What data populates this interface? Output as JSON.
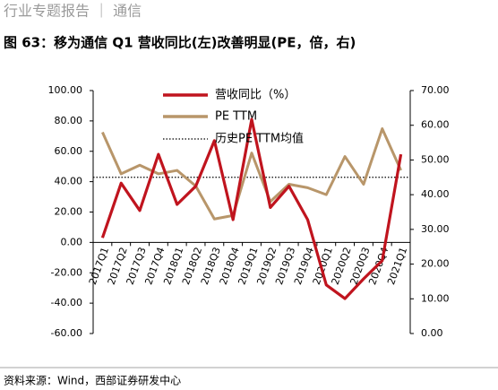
{
  "header": "行业专题报告 ｜ 通信",
  "source": "资料来源：Wind，西部证券研发中心",
  "chart_data": {
    "type": "line",
    "title": "图 63：移为通信 Q1 营收同比(左)改善明显(PE，倍，右)",
    "categories": [
      "2017Q1",
      "2017Q2",
      "2017Q3",
      "2017Q4",
      "2018Q1",
      "2018Q2",
      "2018Q3",
      "2018Q4",
      "2019Q1",
      "2019Q2",
      "2019Q3",
      "2019Q4",
      "2020Q1",
      "2020Q2",
      "2020Q3",
      "2020Q4",
      "2021Q1"
    ],
    "series": [
      {
        "name": "营收同比（%）",
        "color": "#c0141e",
        "axis": "y",
        "values": [
          3,
          39,
          21,
          58,
          25,
          37,
          67,
          15,
          81,
          23,
          37,
          15,
          -28,
          -37,
          -24,
          -12,
          58
        ]
      },
      {
        "name": "PE TTM",
        "color": "#b8966a",
        "axis": "y2",
        "values": [
          58,
          46,
          48.5,
          46,
          47,
          42.5,
          33,
          34,
          52,
          38,
          43,
          42,
          40,
          51,
          43,
          59,
          47
        ]
      }
    ],
    "reference_line": {
      "name": "历史PE TTM均值",
      "value": 45,
      "axis": "y2",
      "color": "#000000"
    },
    "ylim": [
      -60,
      100
    ],
    "yticks": [
      {
        "value": -60,
        "label": "-60.00"
      },
      {
        "value": -40,
        "label": "-40.00"
      },
      {
        "value": -20,
        "label": "-20.00"
      },
      {
        "value": 0,
        "label": "0.00"
      },
      {
        "value": 20,
        "label": "20.00"
      },
      {
        "value": 40,
        "label": "40.00"
      },
      {
        "value": 60,
        "label": "60.00"
      },
      {
        "value": 80,
        "label": "80.00"
      },
      {
        "value": 100,
        "label": "100.00"
      }
    ],
    "y2lim": [
      0,
      70
    ],
    "y2ticks": [
      {
        "value": 0,
        "label": "0.00"
      },
      {
        "value": 10,
        "label": "10.00"
      },
      {
        "value": 20,
        "label": "20.00"
      },
      {
        "value": 30,
        "label": "30.00"
      },
      {
        "value": 40,
        "label": "40.00"
      },
      {
        "value": 50,
        "label": "50.00"
      },
      {
        "value": 60,
        "label": "60.00"
      },
      {
        "value": 70,
        "label": "70.00"
      }
    ],
    "grid": false
  }
}
